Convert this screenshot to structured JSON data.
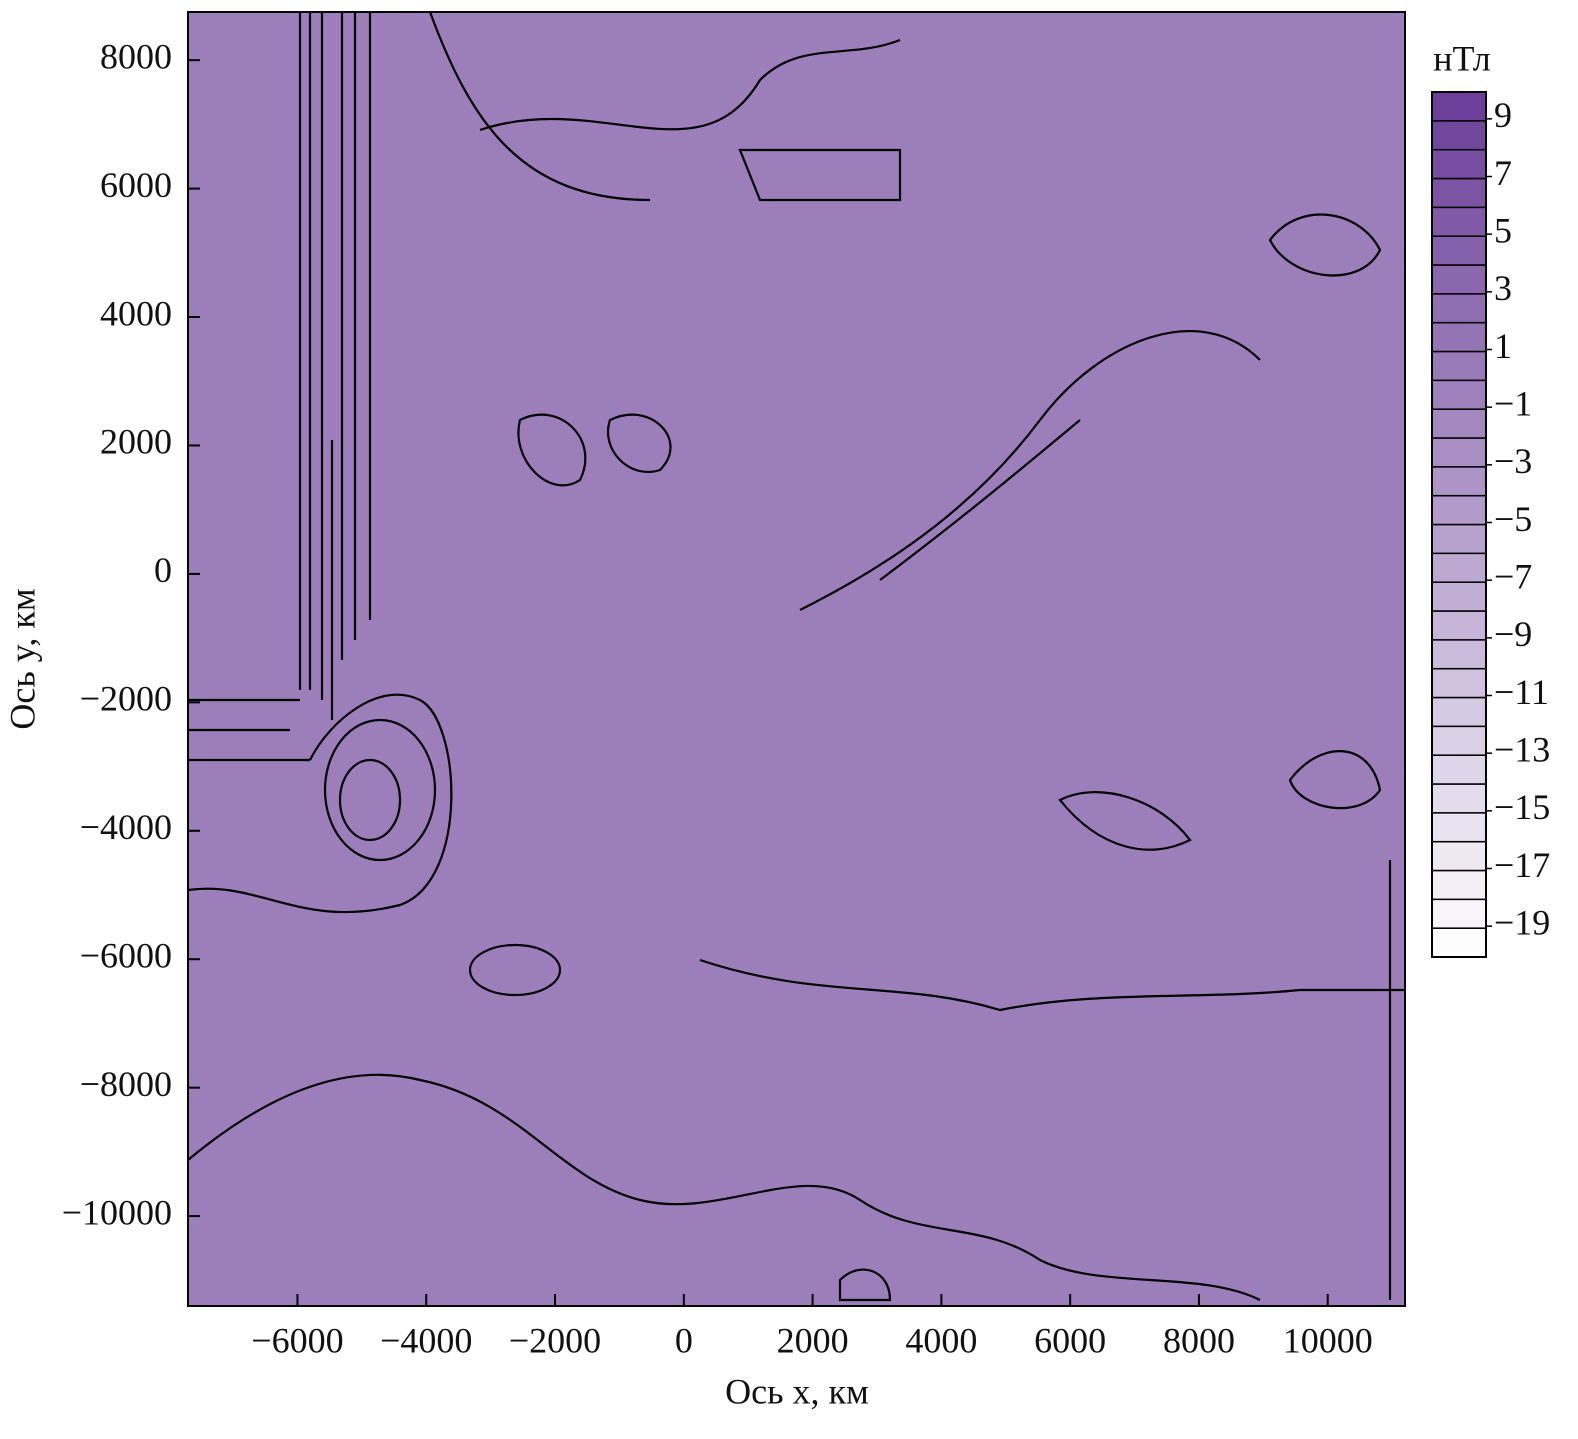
{
  "chart_data": {
    "type": "contour",
    "x_label": "Ось x, км",
    "y_label": "Ось y, км",
    "colorbar_label": "нТл",
    "xlim": [
      -7700,
      11200
    ],
    "ylim": [
      -11400,
      8750
    ],
    "xticks": [
      {
        "value": -6000,
        "label": "−6000"
      },
      {
        "value": -4000,
        "label": "−4000"
      },
      {
        "value": -2000,
        "label": "−2000"
      },
      0,
      2000,
      4000,
      6000,
      8000,
      10000
    ],
    "yticks": [
      {
        "value": -10000,
        "label": "−10000"
      },
      {
        "value": -8000,
        "label": "−8000"
      },
      {
        "value": -6000,
        "label": "−6000"
      },
      {
        "value": -4000,
        "label": "−4000"
      },
      {
        "value": -2000,
        "label": "−2000"
      },
      0,
      2000,
      4000,
      6000,
      8000
    ],
    "background_value": 0,
    "clim": [
      -20,
      10
    ],
    "level_step": 1,
    "colors": [
      "#ffffff",
      "#6a3d98"
    ],
    "cticks": [
      {
        "value": -19,
        "label": "−19"
      },
      {
        "value": -17,
        "label": "−17"
      },
      {
        "value": -15,
        "label": "−15"
      },
      {
        "value": -13,
        "label": "−13"
      },
      {
        "value": -11,
        "label": "−11"
      },
      {
        "value": -9,
        "label": "−9"
      },
      {
        "value": -7,
        "label": "−7"
      },
      {
        "value": -5,
        "label": "−5"
      },
      {
        "value": -3,
        "label": "−3"
      },
      {
        "value": -1,
        "label": "−1"
      },
      1,
      3,
      5,
      7,
      9
    ]
  }
}
